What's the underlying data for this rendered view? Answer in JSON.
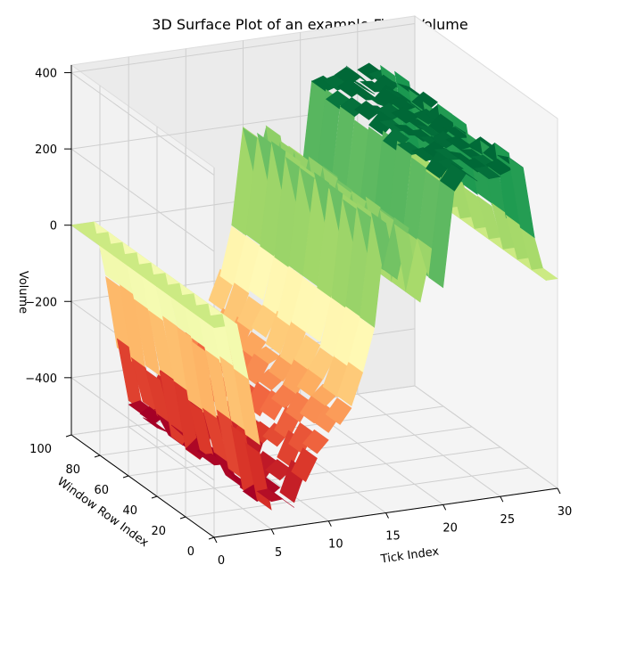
{
  "chart_data": {
    "type": "surface3d",
    "title": "3D Surface Plot of an example Fixed Volume",
    "xlabel": "Tick Index",
    "ylabel": "Window Row Index",
    "zlabel": "Volume",
    "x_ticks": [
      "0",
      "5",
      "10",
      "15",
      "20",
      "25",
      "30"
    ],
    "y_ticks": [
      "0",
      "20",
      "40",
      "60",
      "80",
      "100"
    ],
    "z_ticks": [
      "400",
      "200",
      "0",
      "−200",
      "−400"
    ],
    "xlim": [
      0,
      30
    ],
    "ylim": [
      0,
      100
    ],
    "zlim": [
      -550,
      420
    ],
    "colormap": "RdYlGn",
    "colormap_stops": [
      "#a50026",
      "#d73027",
      "#f46d43",
      "#fdae61",
      "#fee08b",
      "#ffffbf",
      "#d9ef8b",
      "#a6d96a",
      "#66bd63",
      "#1a9850",
      "#006837"
    ],
    "grid": true,
    "profile_along_tick": {
      "x": [
        0,
        2,
        3,
        4,
        5,
        6,
        7,
        8,
        9,
        10,
        11,
        12,
        13,
        14,
        15,
        16,
        17,
        18,
        19,
        20,
        21,
        22,
        23,
        24,
        25,
        26,
        27,
        28,
        29,
        30
      ],
      "z": [
        0,
        0,
        -150,
        -330,
        -480,
        -500,
        -480,
        -420,
        -380,
        -330,
        -290,
        -250,
        -180,
        -60,
        200,
        60,
        180,
        -10,
        120,
        20,
        280,
        300,
        300,
        300,
        300,
        300,
        300,
        120,
        0,
        0
      ]
    }
  }
}
